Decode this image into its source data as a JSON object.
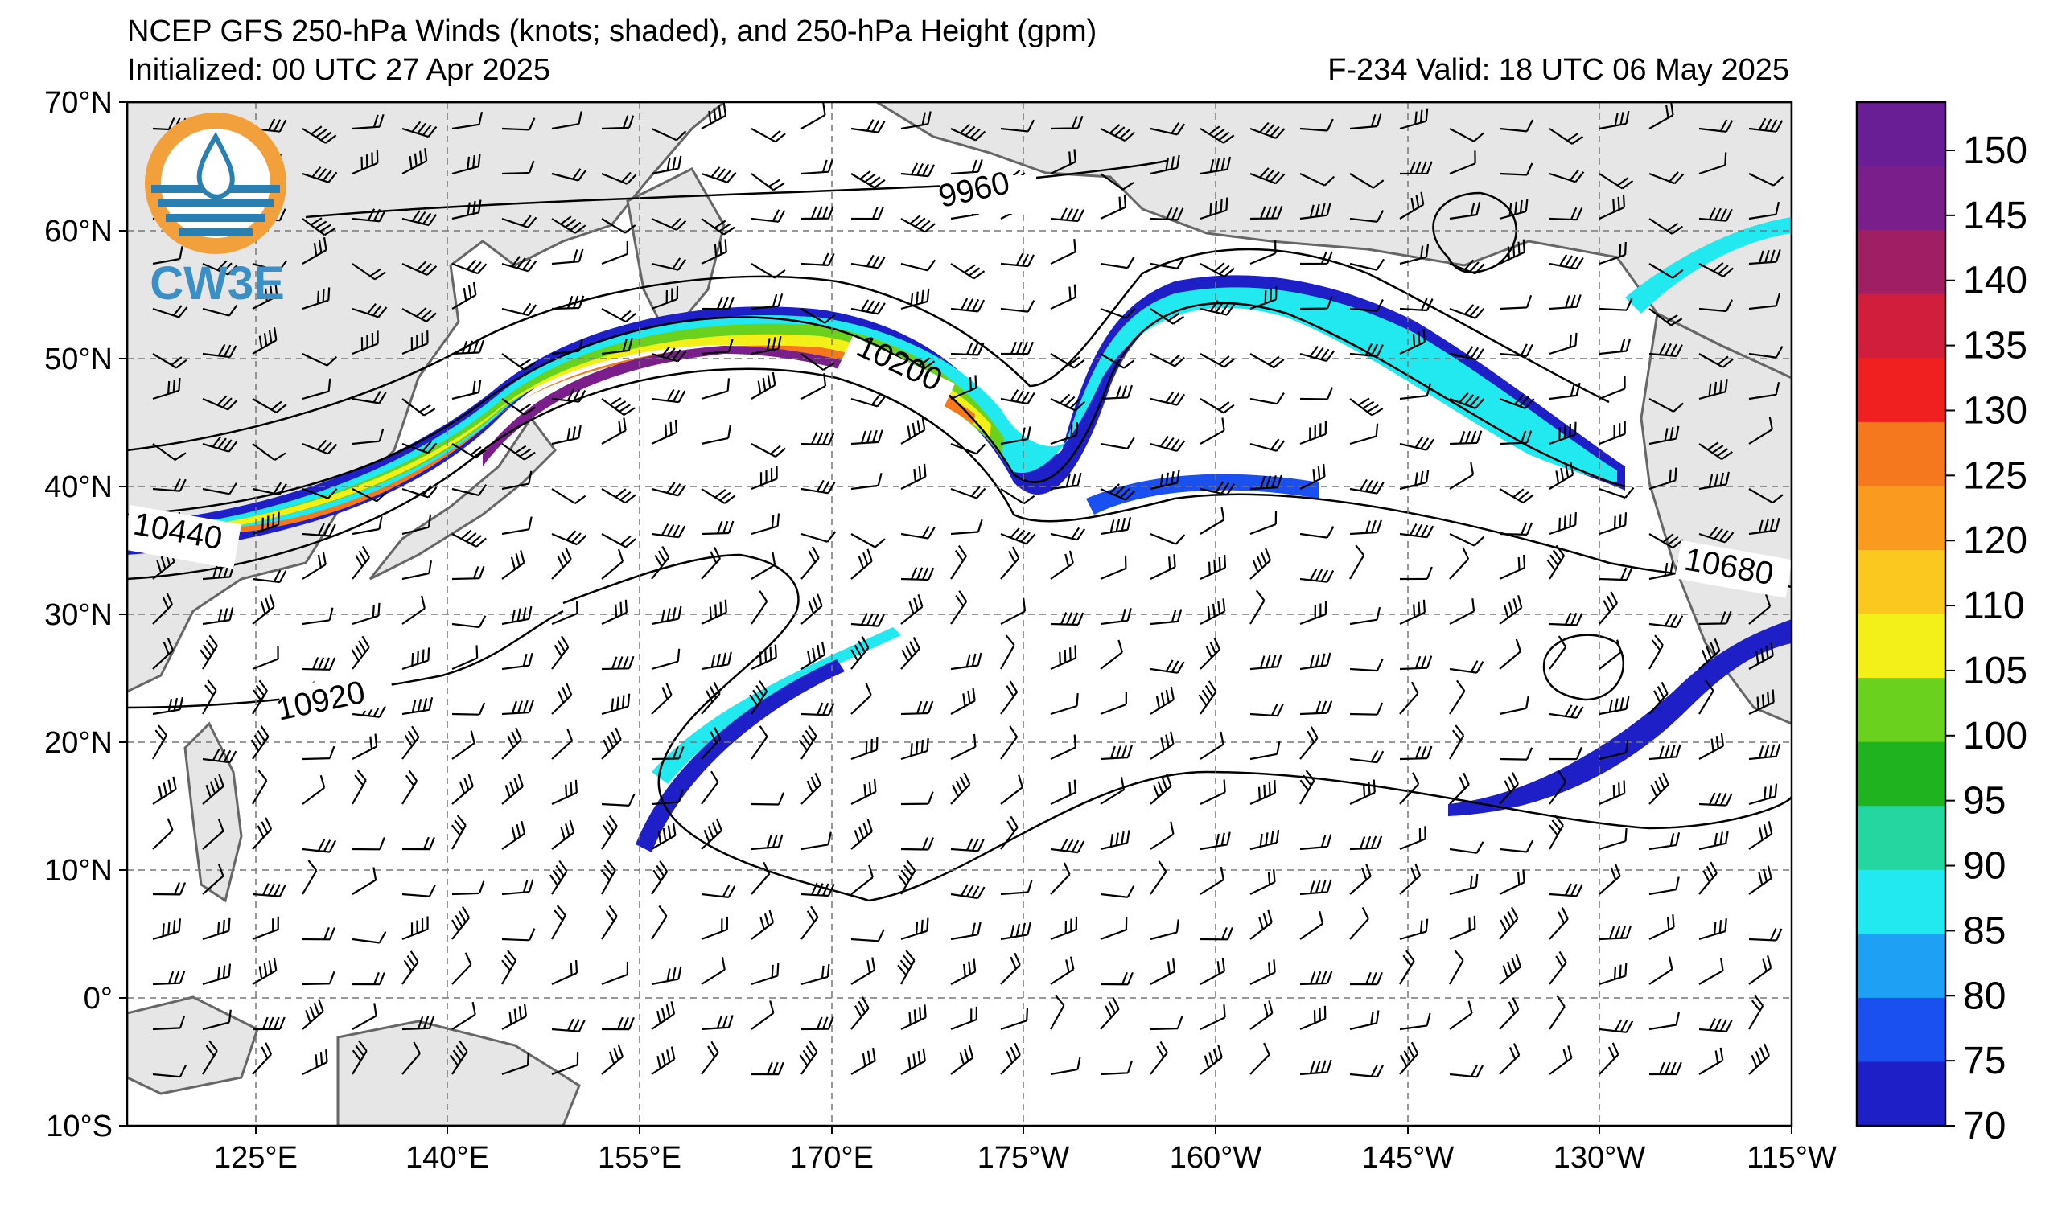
{
  "header": {
    "title": "NCEP GFS 250-hPa Winds (knots; shaded), and 250-hPa Height (gpm)",
    "initialized": "Initialized: 00 UTC 27 Apr 2025",
    "forecast": "F-234  Valid: 18 UTC 06 May 2025"
  },
  "logo": {
    "text": "CW3E",
    "color": "#3b8fc4",
    "accent": "#f2a03c",
    "icon": "water-drop-logo-icon"
  },
  "axes": {
    "lat_labels": [
      "70°N",
      "60°N",
      "50°N",
      "40°N",
      "30°N",
      "20°N",
      "10°N",
      "0°",
      "10°S"
    ],
    "lon_labels": [
      "125°E",
      "140°E",
      "155°E",
      "170°E",
      "175°W",
      "160°W",
      "145°W",
      "130°W",
      "115°W"
    ]
  },
  "contours": {
    "labels": [
      "9960",
      "10200",
      "10440",
      "10680",
      "10920"
    ]
  },
  "colorbar": {
    "ticks": [
      "150",
      "145",
      "140",
      "135",
      "130",
      "125",
      "120",
      "110",
      "105",
      "100",
      "95",
      "90",
      "85",
      "80",
      "75",
      "70"
    ],
    "colors": [
      "#1f1fc8",
      "#1a4ff0",
      "#1ea0f5",
      "#22e8f0",
      "#26d6a0",
      "#1fb41f",
      "#6ad21e",
      "#f2f018",
      "#fac81e",
      "#fa9a1e",
      "#f5781e",
      "#f02020",
      "#d01e3c",
      "#a01e64",
      "#7a1e8c",
      "#6a1e96"
    ]
  }
}
